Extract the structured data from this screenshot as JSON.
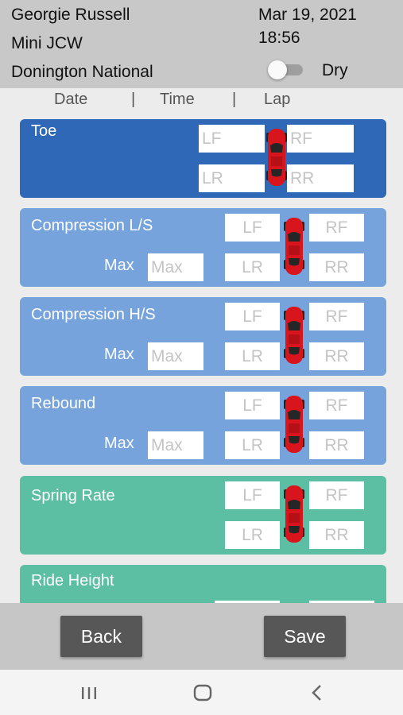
{
  "header": {
    "driver": "Georgie Russell",
    "car": "Mini JCW",
    "track": "Donington National",
    "date": "Mar 19, 2021",
    "time": "18:56",
    "condition_label": "Dry",
    "condition_toggle_on": false
  },
  "subheader": {
    "date": "Date",
    "sep1": "|",
    "time": "Time",
    "sep2": "|",
    "lap": "Lap"
  },
  "placeholders": {
    "lf": "LF",
    "rf": "RF",
    "lr": "LR",
    "rr": "RR",
    "max": "Max"
  },
  "sections": {
    "toe": {
      "title": "Toe"
    },
    "comp_ls": {
      "title": "Compression L/S",
      "max_label": "Max"
    },
    "comp_hs": {
      "title": "Compression H/S",
      "max_label": "Max"
    },
    "rebound": {
      "title": "Rebound",
      "max_label": "Max"
    },
    "spring_rate": {
      "title": "Spring Rate"
    },
    "ride_height": {
      "title": "Ride Height"
    }
  },
  "footer": {
    "back": "Back",
    "save": "Save"
  },
  "colors": {
    "toe": "#2f68b6",
    "damper": "#76a3dc",
    "spring": "#5cbfa3",
    "car": "#d8151c"
  },
  "icons": {
    "car": "car-top-view-icon",
    "recents": "recents-icon",
    "home": "home-icon",
    "back": "back-icon"
  }
}
